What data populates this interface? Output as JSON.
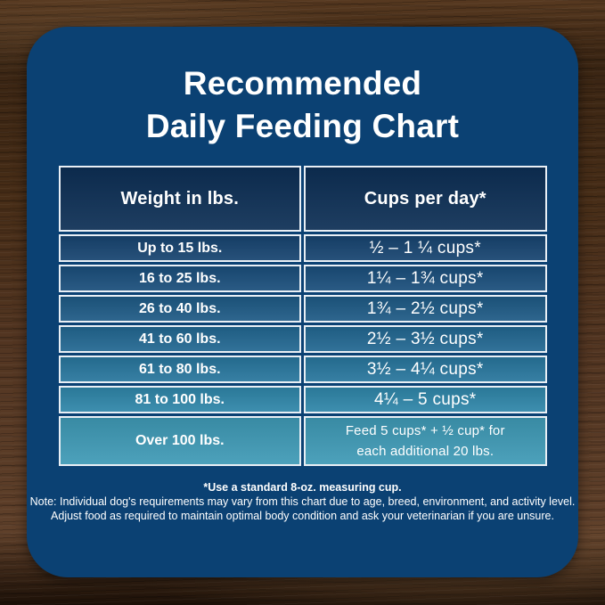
{
  "title": {
    "line1": "Recommended",
    "line2": "Daily Feeding Chart"
  },
  "colors": {
    "card_bg": "#0b4173",
    "header_bg": "#0d2f55",
    "cell_border": "#e9eff5",
    "text": "#ffffff",
    "wood_base": "#4a2e18"
  },
  "table": {
    "headers": {
      "weight": "Weight in lbs.",
      "cups": "Cups per day*"
    },
    "rows": [
      {
        "weight": "Up to 15 lbs.",
        "cups": "½ – 1 ¼ cups*",
        "color": "#174470"
      },
      {
        "weight": "16 to 25 lbs.",
        "cups": "1¼ – 1¾  cups*",
        "color": "#1a4e7b"
      },
      {
        "weight": "26 to 40 lbs.",
        "cups": "1¾ – 2½ cups*",
        "color": "#1e5a85"
      },
      {
        "weight": "41 to 60 lbs.",
        "cups": "2½ – 3½ cups*",
        "color": "#226791"
      },
      {
        "weight": "61 to 80 lbs.",
        "cups": "3½ – 4¼ cups*",
        "color": "#28769d"
      },
      {
        "weight": "81 to 100 lbs.",
        "cups": "4¼ – 5 cups*",
        "color": "#2f86a9"
      },
      {
        "weight": "Over 100 lbs.",
        "cups_line1": "Feed 5 cups* + ½ cup* for",
        "cups_line2": "each additional 20 lbs.",
        "color": "#3f9ab6"
      }
    ]
  },
  "footnotes": {
    "line1": "*Use a standard 8-oz. measuring cup.",
    "line2": "Note: Individual dog's requirements may vary from this chart due to age, breed, environment, and activity level.",
    "line3": "Adjust food as required to maintain optimal body condition and ask your veterinarian if you are unsure."
  },
  "chart_data": {
    "type": "table",
    "title": "Recommended Daily Feeding Chart",
    "columns": [
      "Weight in lbs.",
      "Cups per day*"
    ],
    "rows": [
      [
        "Up to 15 lbs.",
        "½ – 1 ¼ cups*"
      ],
      [
        "16 to 25 lbs.",
        "1¼ – 1¾ cups*"
      ],
      [
        "26 to 40 lbs.",
        "1¾ – 2½ cups*"
      ],
      [
        "41 to 60 lbs.",
        "2½ – 3½ cups*"
      ],
      [
        "61 to 80 lbs.",
        "3½ – 4¼ cups*"
      ],
      [
        "81 to 100 lbs.",
        "4¼ – 5 cups*"
      ],
      [
        "Over 100 lbs.",
        "Feed 5 cups* + ½ cup* for each additional 20 lbs."
      ]
    ],
    "footnote": "*Use a standard 8-oz. measuring cup."
  }
}
